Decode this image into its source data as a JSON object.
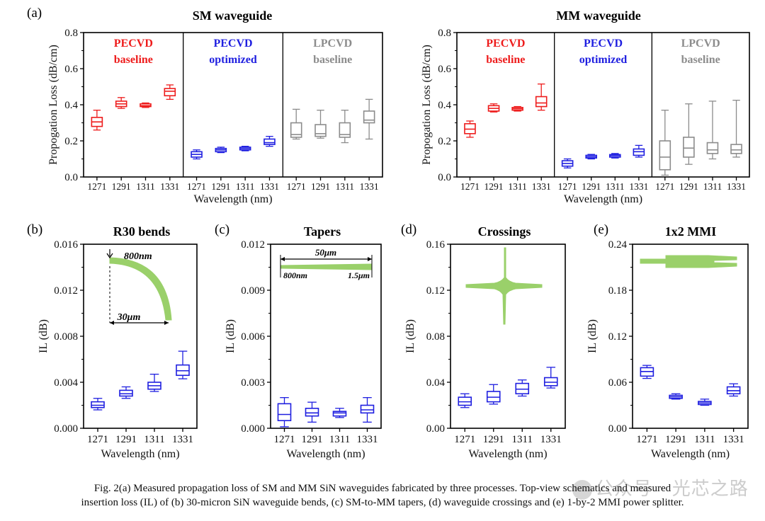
{
  "figure": {
    "watermark": "公众号 · 光芯之路",
    "caption_line1": "Fig. 2(a) Measured propagation loss of SM and MM SiN waveguides fabricated by three processes. Top-view schematics and measured",
    "caption_line2": "insertion loss (IL) of (b) 30-micron SiN waveguide bends, (c) SM-to-MM tapers, (d) waveguide crossings and (e) 1-by-2 MMI power splitter."
  },
  "colors": {
    "pecvd_baseline": "#ee1c1c",
    "pecvd_optimized": "#1f1fe0",
    "lpcvd_baseline": "#8c8c8c",
    "schematic": "#9ad06a"
  },
  "chart_data": [
    {
      "id": "a-sm",
      "panel": "(a)",
      "type": "box",
      "title": "SM waveguide",
      "xlabel": "Wavelength (nm)",
      "ylabel": "Propogation Loss (dB/cm)",
      "ylim": [
        0,
        0.8
      ],
      "yticks": [
        "0.0",
        "0.2",
        "0.4",
        "0.6",
        "0.8"
      ],
      "groups": [
        {
          "name": "PECVD",
          "subname": "baseline",
          "color": "#ee1c1c",
          "categories": [
            "1271",
            "1291",
            "1311",
            "1331"
          ],
          "boxes": [
            {
              "min": 0.26,
              "q1": 0.28,
              "median": 0.305,
              "q3": 0.33,
              "max": 0.37
            },
            {
              "min": 0.38,
              "q1": 0.39,
              "median": 0.405,
              "q3": 0.42,
              "max": 0.44
            },
            {
              "min": 0.385,
              "q1": 0.39,
              "median": 0.395,
              "q3": 0.405,
              "max": 0.41
            },
            {
              "min": 0.43,
              "q1": 0.45,
              "median": 0.475,
              "q3": 0.49,
              "max": 0.51
            }
          ]
        },
        {
          "name": "PECVD",
          "subname": "optimized",
          "color": "#1f1fe0",
          "categories": [
            "1271",
            "1291",
            "1311",
            "1331"
          ],
          "boxes": [
            {
              "min": 0.1,
              "q1": 0.11,
              "median": 0.125,
              "q3": 0.14,
              "max": 0.15
            },
            {
              "min": 0.135,
              "q1": 0.14,
              "median": 0.15,
              "q3": 0.158,
              "max": 0.165
            },
            {
              "min": 0.145,
              "q1": 0.15,
              "median": 0.158,
              "q3": 0.165,
              "max": 0.17
            },
            {
              "min": 0.17,
              "q1": 0.18,
              "median": 0.19,
              "q3": 0.21,
              "max": 0.225
            }
          ]
        },
        {
          "name": "LPCVD",
          "subname": "baseline",
          "color": "#8c8c8c",
          "categories": [
            "1271",
            "1291",
            "1311",
            "1331"
          ],
          "boxes": [
            {
              "min": 0.21,
              "q1": 0.22,
              "median": 0.235,
              "q3": 0.3,
              "max": 0.375
            },
            {
              "min": 0.215,
              "q1": 0.225,
              "median": 0.24,
              "q3": 0.29,
              "max": 0.37
            },
            {
              "min": 0.19,
              "q1": 0.22,
              "median": 0.235,
              "q3": 0.3,
              "max": 0.37
            },
            {
              "min": 0.21,
              "q1": 0.3,
              "median": 0.315,
              "q3": 0.365,
              "max": 0.43
            }
          ]
        }
      ]
    },
    {
      "id": "a-mm",
      "panel": "",
      "type": "box",
      "title": "MM waveguide",
      "xlabel": "Wavelength (nm)",
      "ylabel": "Propogation Loss (dB/cm)",
      "ylim": [
        0,
        0.8
      ],
      "yticks": [
        "0.0",
        "0.2",
        "0.4",
        "0.6",
        "0.8"
      ],
      "groups": [
        {
          "name": "PECVD",
          "subname": "baseline",
          "color": "#ee1c1c",
          "categories": [
            "1271",
            "1291",
            "1311",
            "1331"
          ],
          "boxes": [
            {
              "min": 0.22,
              "q1": 0.24,
              "median": 0.265,
              "q3": 0.295,
              "max": 0.31
            },
            {
              "min": 0.36,
              "q1": 0.365,
              "median": 0.38,
              "q3": 0.395,
              "max": 0.405
            },
            {
              "min": 0.365,
              "q1": 0.37,
              "median": 0.378,
              "q3": 0.385,
              "max": 0.39
            },
            {
              "min": 0.37,
              "q1": 0.39,
              "median": 0.41,
              "q3": 0.445,
              "max": 0.515
            }
          ]
        },
        {
          "name": "PECVD",
          "subname": "optimized",
          "color": "#1f1fe0",
          "categories": [
            "1271",
            "1291",
            "1311",
            "1331"
          ],
          "boxes": [
            {
              "min": 0.05,
              "q1": 0.06,
              "median": 0.075,
              "q3": 0.09,
              "max": 0.1
            },
            {
              "min": 0.1,
              "q1": 0.105,
              "median": 0.112,
              "q3": 0.12,
              "max": 0.125
            },
            {
              "min": 0.105,
              "q1": 0.11,
              "median": 0.118,
              "q3": 0.124,
              "max": 0.13
            },
            {
              "min": 0.11,
              "q1": 0.12,
              "median": 0.14,
              "q3": 0.155,
              "max": 0.175
            }
          ]
        },
        {
          "name": "LPCVD",
          "subname": "baseline",
          "color": "#8c8c8c",
          "categories": [
            "1271",
            "1291",
            "1311",
            "1331"
          ],
          "boxes": [
            {
              "min": 0.01,
              "q1": 0.04,
              "median": 0.11,
              "q3": 0.2,
              "max": 0.37
            },
            {
              "min": 0.07,
              "q1": 0.11,
              "median": 0.16,
              "q3": 0.22,
              "max": 0.405
            },
            {
              "min": 0.1,
              "q1": 0.13,
              "median": 0.15,
              "q3": 0.19,
              "max": 0.42
            },
            {
              "min": 0.11,
              "q1": 0.13,
              "median": 0.15,
              "q3": 0.18,
              "max": 0.425
            }
          ]
        }
      ]
    },
    {
      "id": "b",
      "panel": "(b)",
      "type": "box",
      "title": "R30 bends",
      "xlabel": "Wavelength (nm)",
      "ylabel": "IL (dB)",
      "ylim": [
        0,
        0.016
      ],
      "yticks": [
        "0.000",
        "0.004",
        "0.008",
        "0.012",
        "0.016"
      ],
      "categories": [
        "1271",
        "1291",
        "1311",
        "1331"
      ],
      "color": "#1f1fe0",
      "boxes": [
        {
          "min": 0.0016,
          "q1": 0.0018,
          "median": 0.002,
          "q3": 0.0023,
          "max": 0.0026
        },
        {
          "min": 0.0026,
          "q1": 0.0028,
          "median": 0.003,
          "q3": 0.0033,
          "max": 0.0036
        },
        {
          "min": 0.0032,
          "q1": 0.0034,
          "median": 0.0037,
          "q3": 0.004,
          "max": 0.0047
        },
        {
          "min": 0.0043,
          "q1": 0.0046,
          "median": 0.005,
          "q3": 0.0055,
          "max": 0.0067
        }
      ],
      "schematic": {
        "kind": "bend",
        "labels": [
          "800nm",
          "30μm"
        ]
      }
    },
    {
      "id": "c",
      "panel": "(c)",
      "type": "box",
      "title": "Tapers",
      "xlabel": "Wavelength (nm)",
      "ylabel": "IL (dB)",
      "ylim": [
        0,
        0.012
      ],
      "yticks": [
        "0.000",
        "0.003",
        "0.006",
        "0.009",
        "0.012"
      ],
      "categories": [
        "1271",
        "1291",
        "1311",
        "1331"
      ],
      "color": "#1f1fe0",
      "boxes": [
        {
          "min": 0.0001,
          "q1": 0.0005,
          "median": 0.0009,
          "q3": 0.0016,
          "max": 0.002
        },
        {
          "min": 0.0004,
          "q1": 0.0008,
          "median": 0.001,
          "q3": 0.0013,
          "max": 0.0017
        },
        {
          "min": 0.0007,
          "q1": 0.0008,
          "median": 0.001,
          "q3": 0.0011,
          "max": 0.0013
        },
        {
          "min": 0.0004,
          "q1": 0.001,
          "median": 0.0012,
          "q3": 0.0015,
          "max": 0.002
        }
      ],
      "schematic": {
        "kind": "taper",
        "labels": [
          "50μm",
          "800nm",
          "1.5μm"
        ]
      }
    },
    {
      "id": "d",
      "panel": "(d)",
      "type": "box",
      "title": "Crossings",
      "xlabel": "Wavelength (nm)",
      "ylabel": "IL (dB)",
      "ylim": [
        0,
        0.16
      ],
      "yticks": [
        "0.00",
        "0.04",
        "0.08",
        "0.12",
        "0.16"
      ],
      "categories": [
        "1271",
        "1291",
        "1311",
        "1331"
      ],
      "color": "#1f1fe0",
      "boxes": [
        {
          "min": 0.018,
          "q1": 0.02,
          "median": 0.023,
          "q3": 0.027,
          "max": 0.03
        },
        {
          "min": 0.021,
          "q1": 0.023,
          "median": 0.027,
          "q3": 0.032,
          "max": 0.038
        },
        {
          "min": 0.028,
          "q1": 0.03,
          "median": 0.034,
          "q3": 0.039,
          "max": 0.042
        },
        {
          "min": 0.035,
          "q1": 0.037,
          "median": 0.04,
          "q3": 0.044,
          "max": 0.053
        }
      ],
      "schematic": {
        "kind": "crossing",
        "labels": []
      }
    },
    {
      "id": "e",
      "panel": "(e)",
      "type": "box",
      "title": "1x2 MMI",
      "xlabel": "Wavelength (nm)",
      "ylabel": "IL (dB)",
      "ylim": [
        0,
        0.24
      ],
      "yticks": [
        "0.00",
        "0.06",
        "0.12",
        "0.18",
        "0.24"
      ],
      "categories": [
        "1271",
        "1291",
        "1311",
        "1331"
      ],
      "color": "#1f1fe0",
      "boxes": [
        {
          "min": 0.065,
          "q1": 0.068,
          "median": 0.074,
          "q3": 0.079,
          "max": 0.082
        },
        {
          "min": 0.038,
          "q1": 0.039,
          "median": 0.041,
          "q3": 0.043,
          "max": 0.045
        },
        {
          "min": 0.03,
          "q1": 0.031,
          "median": 0.033,
          "q3": 0.035,
          "max": 0.038
        },
        {
          "min": 0.042,
          "q1": 0.045,
          "median": 0.049,
          "q3": 0.054,
          "max": 0.058
        }
      ],
      "schematic": {
        "kind": "mmi",
        "labels": []
      }
    }
  ]
}
